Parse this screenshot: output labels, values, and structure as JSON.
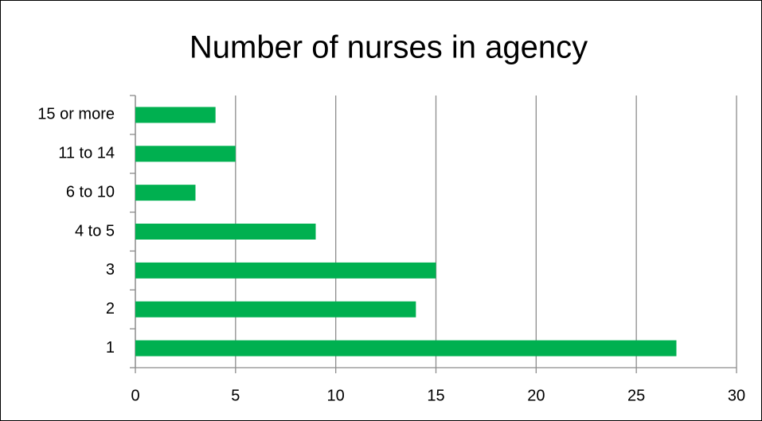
{
  "chart_data": {
    "type": "barh",
    "title": "Number of nurses in agency",
    "categories": [
      "1",
      "2",
      "3",
      "4 to 5",
      "6 to 10",
      "11 to 14",
      "15 or more"
    ],
    "values": [
      27,
      14,
      15,
      9,
      3,
      5,
      4
    ],
    "color": "#00b050",
    "xlim": [
      0,
      30
    ],
    "xticks": [
      0,
      5,
      10,
      15,
      20,
      25,
      30
    ],
    "grid": true
  }
}
